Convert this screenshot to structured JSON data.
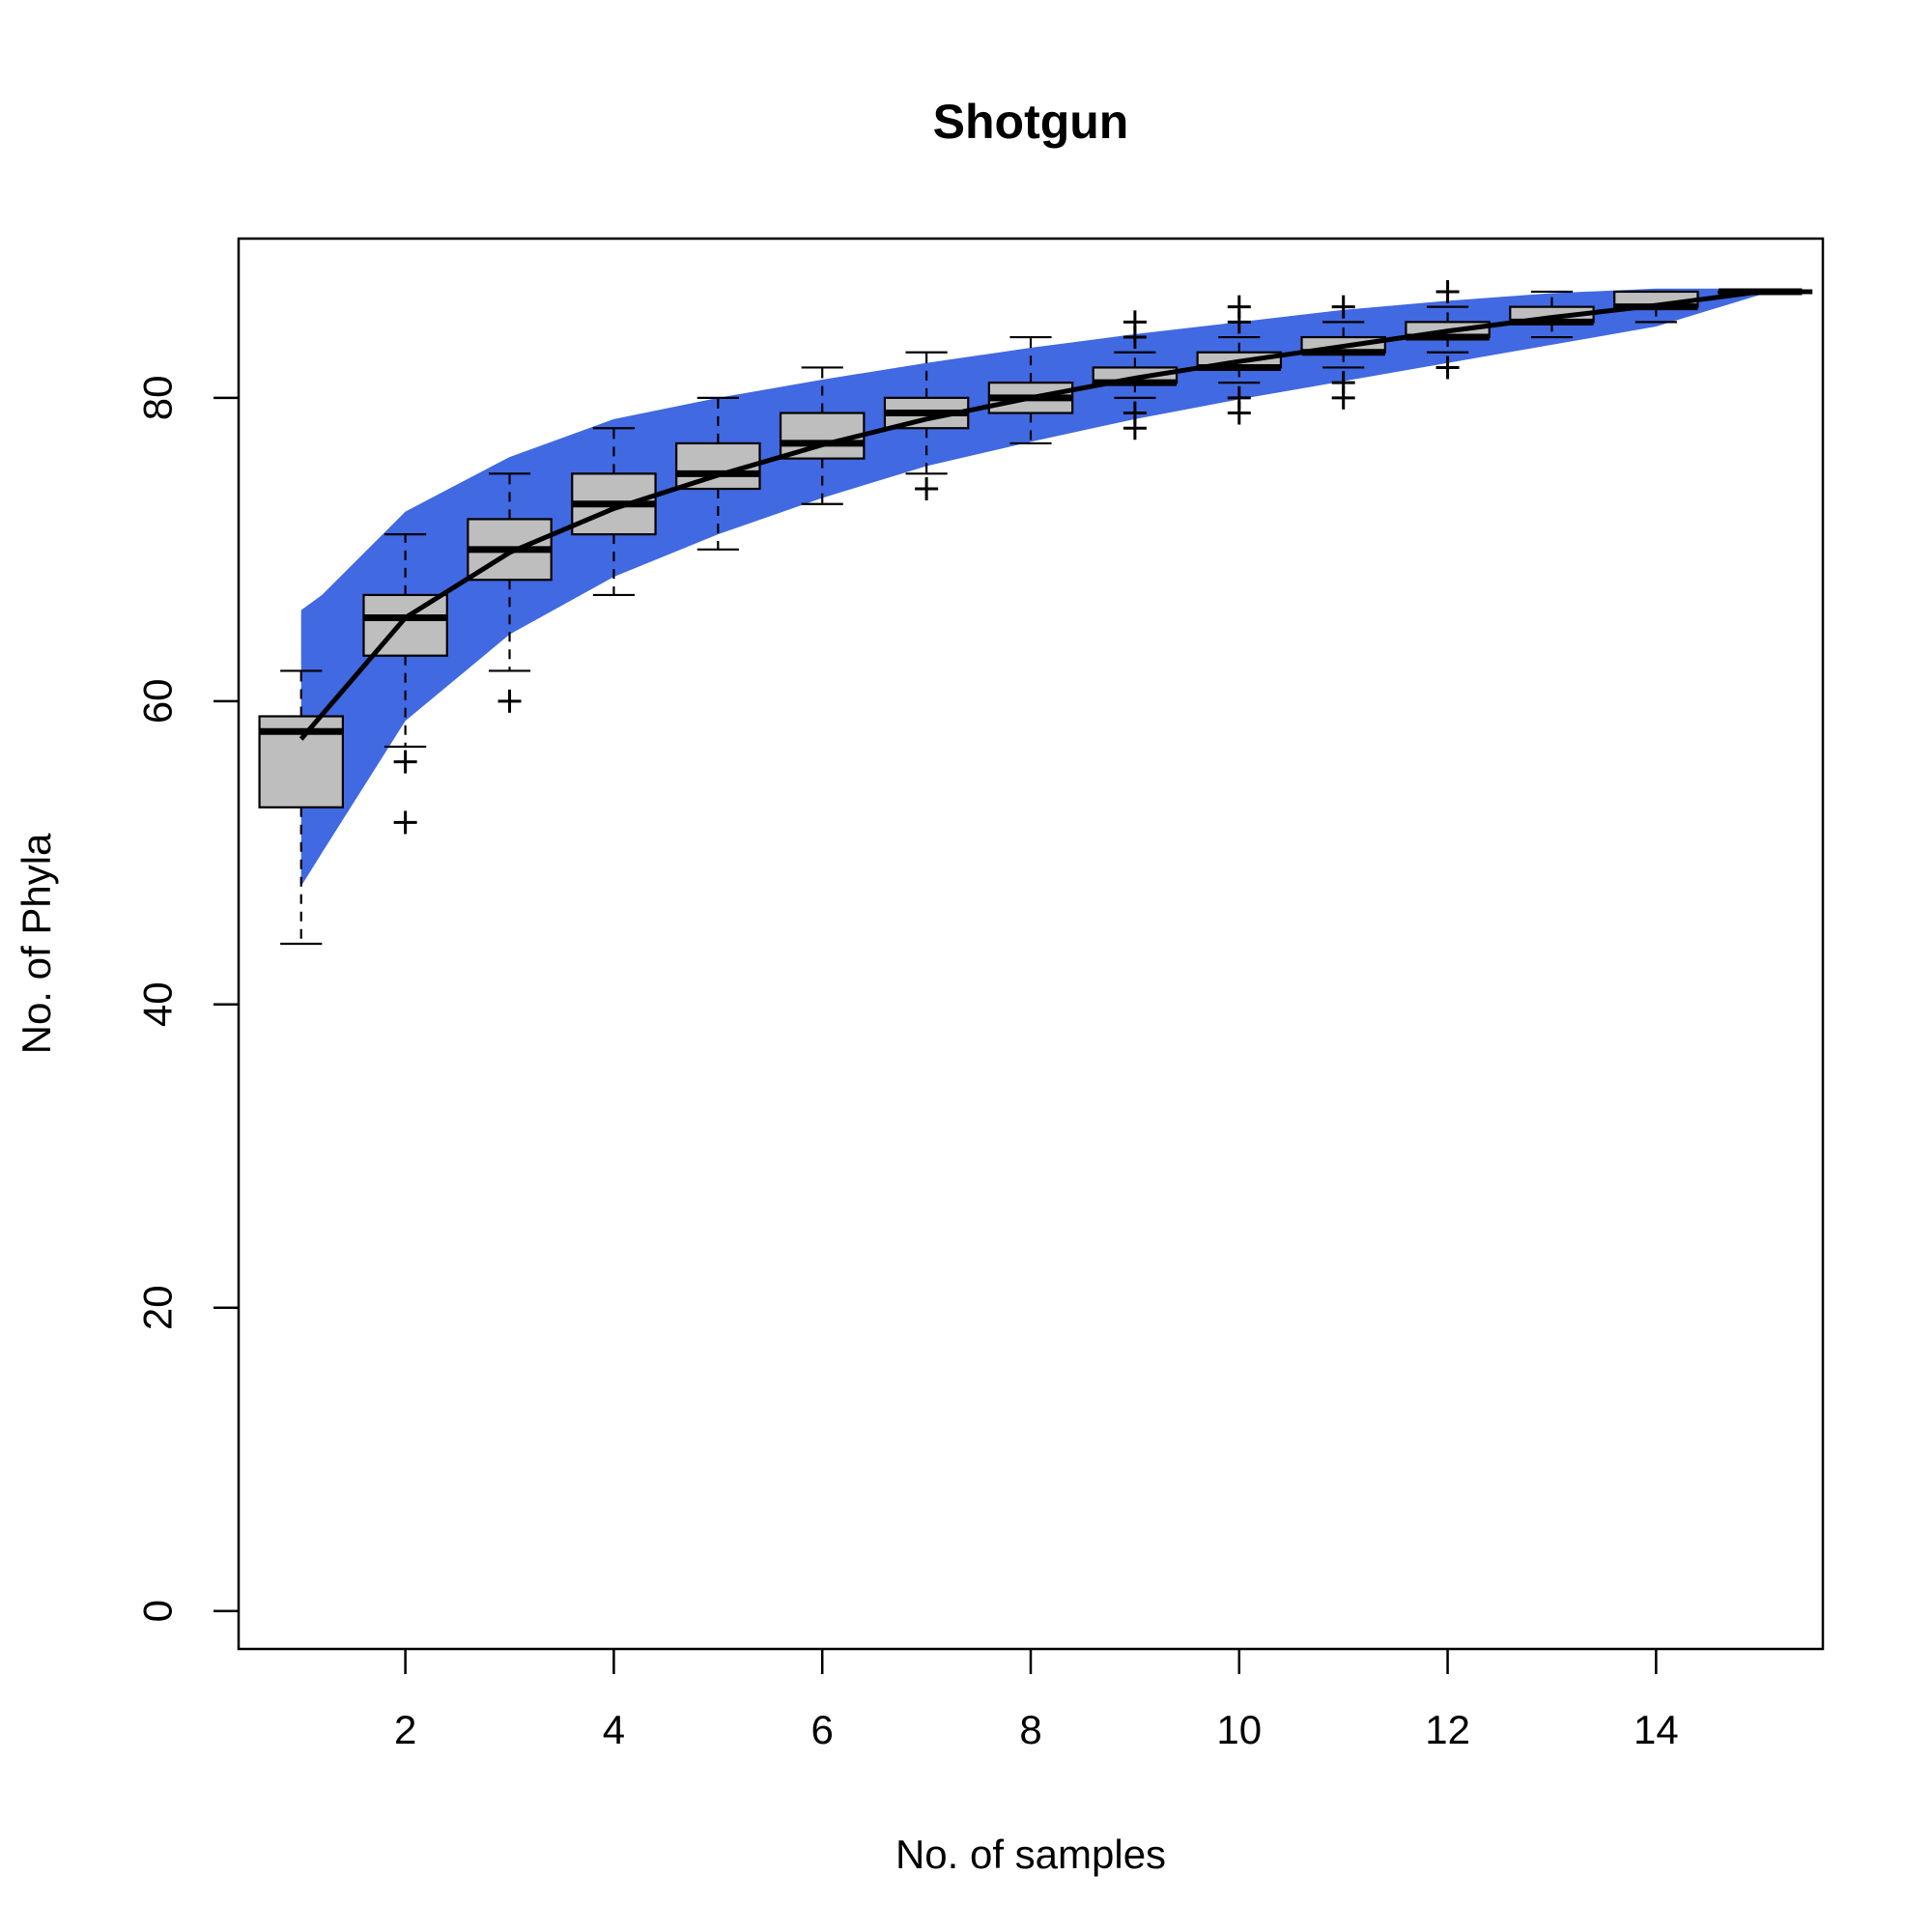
{
  "chart_data": {
    "type": "boxplot",
    "title": "Shotgun",
    "xlabel": "No. of samples",
    "ylabel": "No. of Phyla",
    "xlim": [
      0.4,
      15.6
    ],
    "ylim": [
      -2.5,
      90.5
    ],
    "xticks": [
      2,
      4,
      6,
      8,
      10,
      12,
      14
    ],
    "yticks": [
      0,
      20,
      40,
      60,
      80
    ],
    "grid": false,
    "colors": {
      "band": "#4169E1",
      "box_fill": "#BEBEBE",
      "line": "#000000"
    },
    "boxes": [
      {
        "x": 1,
        "q1": 53,
        "median": 58,
        "q3": 59,
        "whisker_low": 44,
        "whisker_high": 62,
        "outliers": []
      },
      {
        "x": 2,
        "q1": 63,
        "median": 65.5,
        "q3": 67,
        "whisker_low": 57,
        "whisker_high": 71,
        "outliers": [
          52,
          56
        ]
      },
      {
        "x": 3,
        "q1": 68,
        "median": 70,
        "q3": 72,
        "whisker_low": 62,
        "whisker_high": 75,
        "outliers": [
          60
        ]
      },
      {
        "x": 4,
        "q1": 71,
        "median": 73,
        "q3": 75,
        "whisker_low": 67,
        "whisker_high": 78,
        "outliers": []
      },
      {
        "x": 5,
        "q1": 74,
        "median": 75,
        "q3": 77,
        "whisker_low": 70,
        "whisker_high": 80,
        "outliers": []
      },
      {
        "x": 6,
        "q1": 76,
        "median": 77,
        "q3": 79,
        "whisker_low": 73,
        "whisker_high": 82,
        "outliers": []
      },
      {
        "x": 7,
        "q1": 78,
        "median": 79,
        "q3": 80,
        "whisker_low": 75,
        "whisker_high": 83,
        "outliers": [
          74
        ]
      },
      {
        "x": 8,
        "q1": 79,
        "median": 80,
        "q3": 81,
        "whisker_low": 77,
        "whisker_high": 84,
        "outliers": []
      },
      {
        "x": 9,
        "q1": 81,
        "median": 81,
        "q3": 82,
        "whisker_low": 80,
        "whisker_high": 83,
        "outliers": [
          78,
          79,
          84,
          85
        ]
      },
      {
        "x": 10,
        "q1": 82,
        "median": 82,
        "q3": 83,
        "whisker_low": 81,
        "whisker_high": 84,
        "outliers": [
          79,
          80,
          85,
          86
        ]
      },
      {
        "x": 11,
        "q1": 83,
        "median": 83,
        "q3": 84,
        "whisker_low": 82,
        "whisker_high": 85,
        "outliers": [
          80,
          81,
          86
        ]
      },
      {
        "x": 12,
        "q1": 84,
        "median": 84,
        "q3": 85,
        "whisker_low": 83,
        "whisker_high": 86,
        "outliers": [
          82,
          87
        ]
      },
      {
        "x": 13,
        "q1": 85,
        "median": 85,
        "q3": 86,
        "whisker_low": 84,
        "whisker_high": 87,
        "outliers": []
      },
      {
        "x": 14,
        "q1": 86,
        "median": 86,
        "q3": 87,
        "whisker_low": 85,
        "whisker_high": 87,
        "outliers": []
      },
      {
        "x": 15,
        "q1": 87,
        "median": 87,
        "q3": 87,
        "whisker_low": 87,
        "whisker_high": 87,
        "outliers": []
      }
    ],
    "mean_line": {
      "x": [
        1,
        2,
        3,
        4,
        5,
        6,
        7,
        8,
        9,
        10,
        11,
        12,
        13,
        14,
        15,
        15.5
      ],
      "y": [
        57.5,
        65.5,
        69.8,
        72.7,
        74.9,
        76.9,
        78.6,
        80.0,
        81.3,
        82.4,
        83.4,
        84.4,
        85.3,
        86.1,
        87.0,
        87.0
      ]
    },
    "band": {
      "x": [
        1,
        1.2,
        2,
        3,
        4,
        5,
        6,
        7,
        8,
        9,
        10,
        11,
        12,
        13,
        14,
        15
      ],
      "upper": [
        66,
        67,
        72.5,
        76.1,
        78.6,
        80.0,
        81.2,
        82.3,
        83.3,
        84.2,
        85.0,
        85.8,
        86.4,
        86.9,
        87.2,
        87.2
      ],
      "lower": [
        47.8,
        50,
        58.7,
        64.4,
        68.2,
        71.0,
        73.4,
        75.5,
        77.1,
        78.6,
        79.9,
        81.1,
        82.3,
        83.5,
        84.7,
        86.8
      ]
    }
  }
}
